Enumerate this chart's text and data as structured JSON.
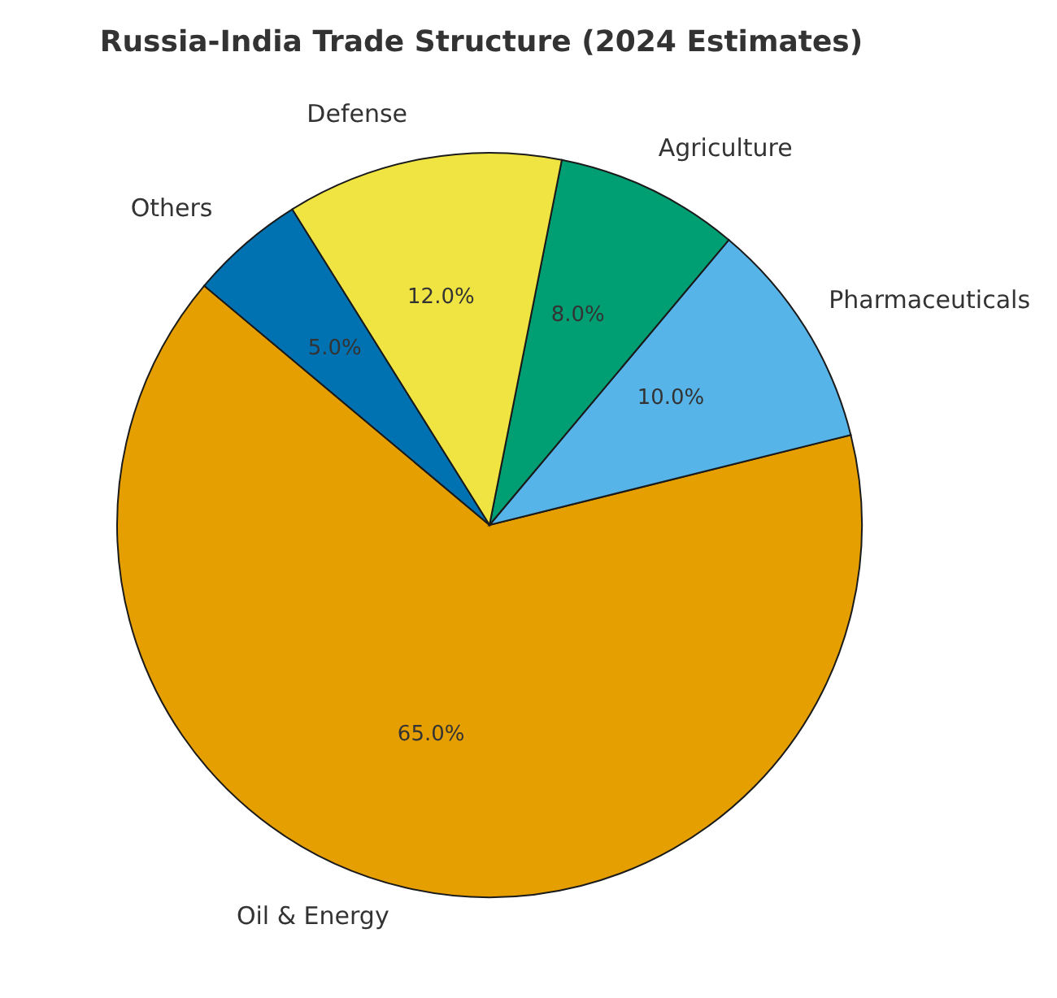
{
  "chart_data": {
    "type": "pie",
    "title": "Russia-India Trade Structure (2024 Estimates)",
    "categories": [
      "Oil & Energy",
      "Pharmaceuticals",
      "Agriculture",
      "Defense",
      "Others"
    ],
    "values": [
      65,
      10,
      8,
      12,
      5
    ],
    "colors": [
      "#e69f00",
      "#56b4e9",
      "#009e73",
      "#f0e442",
      "#0072b2"
    ],
    "value_labels": [
      "65.0%",
      "10.0%",
      "8.0%",
      "12.0%",
      "5.0%"
    ]
  }
}
